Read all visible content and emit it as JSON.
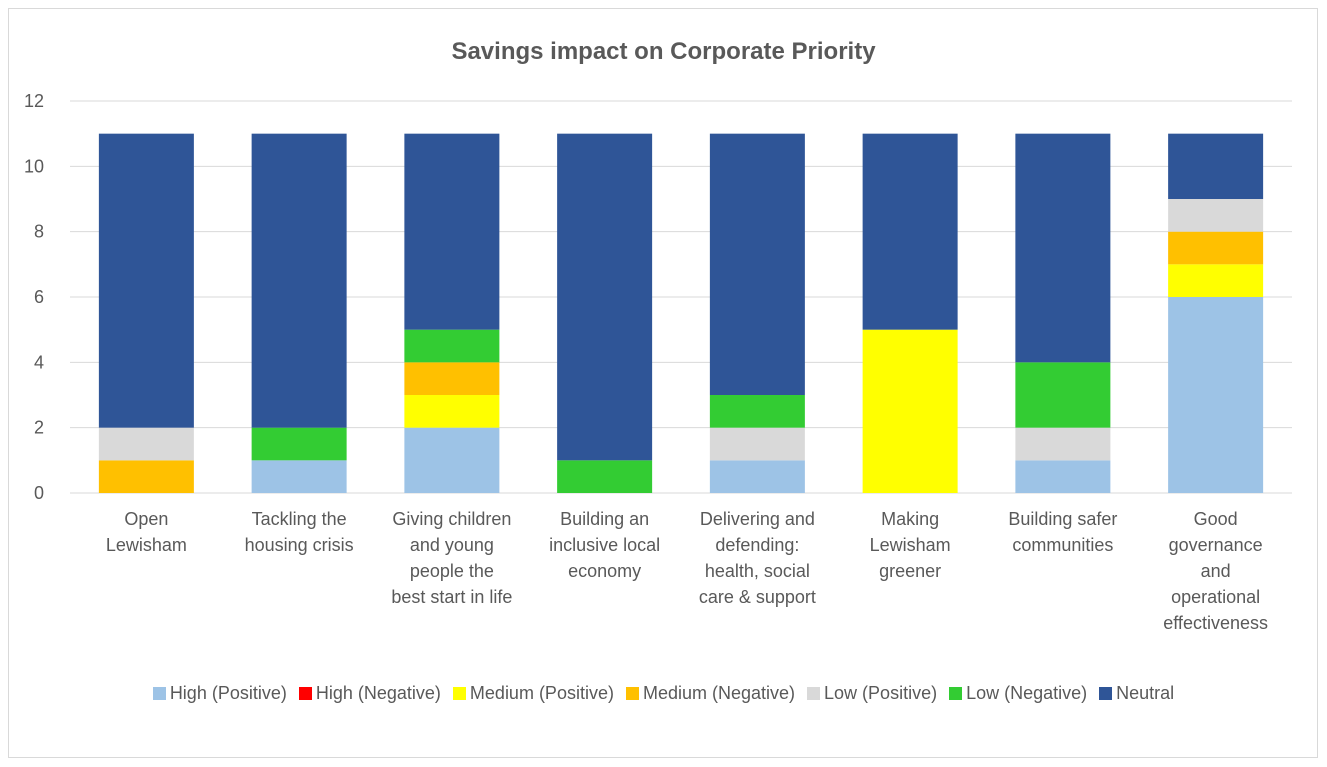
{
  "chart_data": {
    "type": "bar",
    "stacked": true,
    "title": "Savings impact on Corporate Priority",
    "categories": [
      [
        "Open",
        "Lewisham"
      ],
      [
        "Tackling the",
        "housing crisis"
      ],
      [
        "Giving children",
        "and young",
        "people the",
        "best start in life"
      ],
      [
        "Building an",
        "inclusive local",
        "economy"
      ],
      [
        "Delivering and",
        "defending:",
        "health, social",
        "care & support"
      ],
      [
        "Making",
        "Lewisham",
        "greener"
      ],
      [
        "Building safer",
        "communities"
      ],
      [
        "Good",
        "governance",
        "and",
        "operational",
        "effectiveness"
      ]
    ],
    "ylim": [
      0,
      12
    ],
    "yticks": [
      0,
      2,
      4,
      6,
      8,
      10,
      12
    ],
    "grid": true,
    "legend_position": "bottom",
    "series": [
      {
        "name": "High (Positive)",
        "color": "#9dc3e6",
        "values": [
          0,
          1,
          2,
          0,
          1,
          0,
          1,
          6
        ]
      },
      {
        "name": "High (Negative)",
        "color": "#ff0000",
        "values": [
          0,
          0,
          0,
          0,
          0,
          0,
          0,
          0
        ]
      },
      {
        "name": "Medium (Positive)",
        "color": "#ffff00",
        "values": [
          0,
          0,
          1,
          0,
          0,
          5,
          0,
          1
        ]
      },
      {
        "name": "Medium (Negative)",
        "color": "#ffc000",
        "values": [
          1,
          0,
          1,
          0,
          0,
          0,
          0,
          1
        ]
      },
      {
        "name": "Low (Positive)",
        "color": "#d9d9d9",
        "values": [
          1,
          0,
          0,
          0,
          1,
          0,
          1,
          1
        ]
      },
      {
        "name": "Low (Negative)",
        "color": "#33cc33",
        "values": [
          0,
          1,
          1,
          1,
          1,
          0,
          2,
          0
        ]
      },
      {
        "name": "Neutral",
        "color": "#2f5597",
        "values": [
          9,
          9,
          6,
          10,
          8,
          6,
          7,
          2
        ]
      }
    ]
  }
}
